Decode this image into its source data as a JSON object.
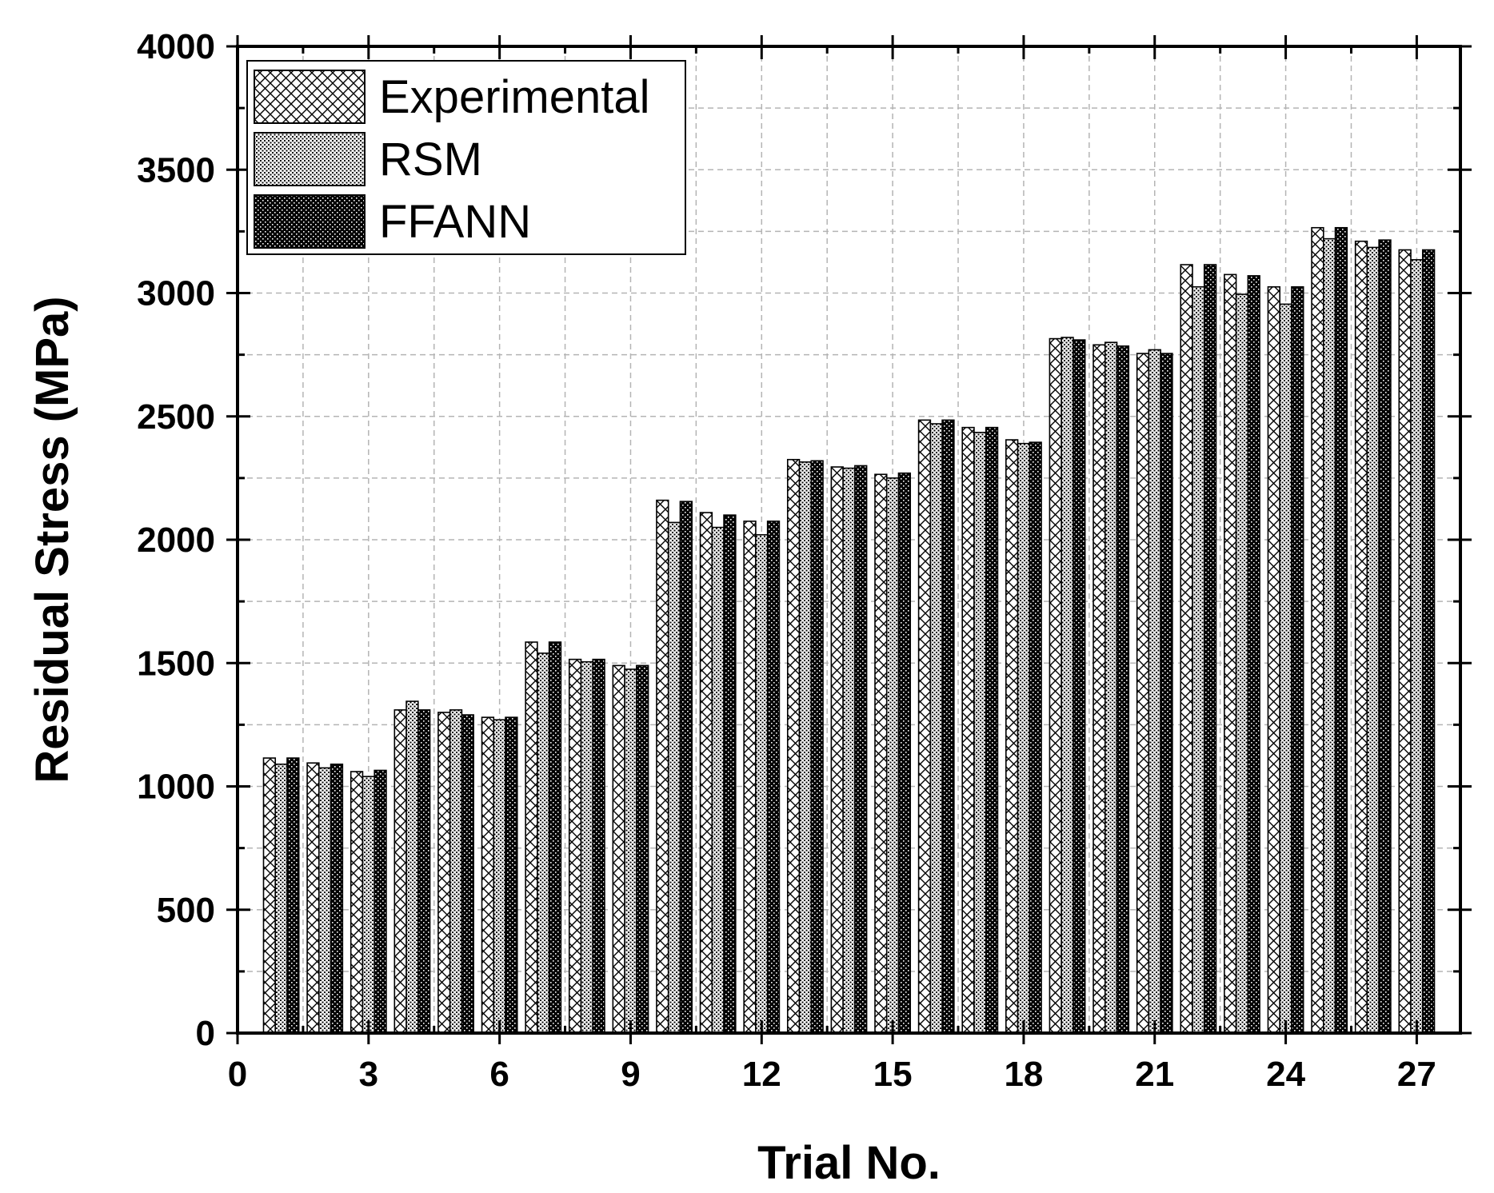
{
  "chart_data": {
    "type": "bar",
    "xlabel": "Trial No.",
    "ylabel": "Residual Stress (MPa)",
    "xlim": [
      0,
      28
    ],
    "ylim": [
      0,
      4000
    ],
    "x_ticks": [
      0,
      3,
      6,
      9,
      12,
      15,
      18,
      21,
      24,
      27
    ],
    "y_ticks": [
      0,
      500,
      1000,
      1500,
      2000,
      2500,
      3000,
      3500,
      4000
    ],
    "grid": true,
    "legend_position": "top-left",
    "categories": [
      1,
      2,
      3,
      4,
      5,
      6,
      7,
      8,
      9,
      10,
      11,
      12,
      13,
      14,
      15,
      16,
      17,
      18,
      19,
      20,
      21,
      22,
      23,
      24,
      25,
      26,
      27
    ],
    "series": [
      {
        "name": "Experimental",
        "pattern": "crosshatch",
        "values": [
          1115,
          1095,
          1060,
          1310,
          1300,
          1280,
          1585,
          1515,
          1490,
          2160,
          2110,
          2075,
          2325,
          2295,
          2265,
          2485,
          2455,
          2405,
          2815,
          2790,
          2755,
          3115,
          3075,
          3025,
          3265,
          3210,
          3175
        ]
      },
      {
        "name": "RSM",
        "pattern": "fine-dots",
        "values": [
          1090,
          1075,
          1040,
          1345,
          1310,
          1270,
          1540,
          1505,
          1475,
          2070,
          2050,
          2020,
          2315,
          2290,
          2250,
          2470,
          2435,
          2390,
          2820,
          2800,
          2770,
          3025,
          2995,
          2955,
          3220,
          3185,
          3135
        ]
      },
      {
        "name": "FFANN",
        "pattern": "dense-dots",
        "values": [
          1115,
          1090,
          1065,
          1310,
          1290,
          1280,
          1585,
          1515,
          1490,
          2155,
          2100,
          2075,
          2320,
          2300,
          2270,
          2485,
          2455,
          2395,
          2810,
          2785,
          2755,
          3115,
          3070,
          3025,
          3265,
          3215,
          3175
        ]
      }
    ]
  }
}
